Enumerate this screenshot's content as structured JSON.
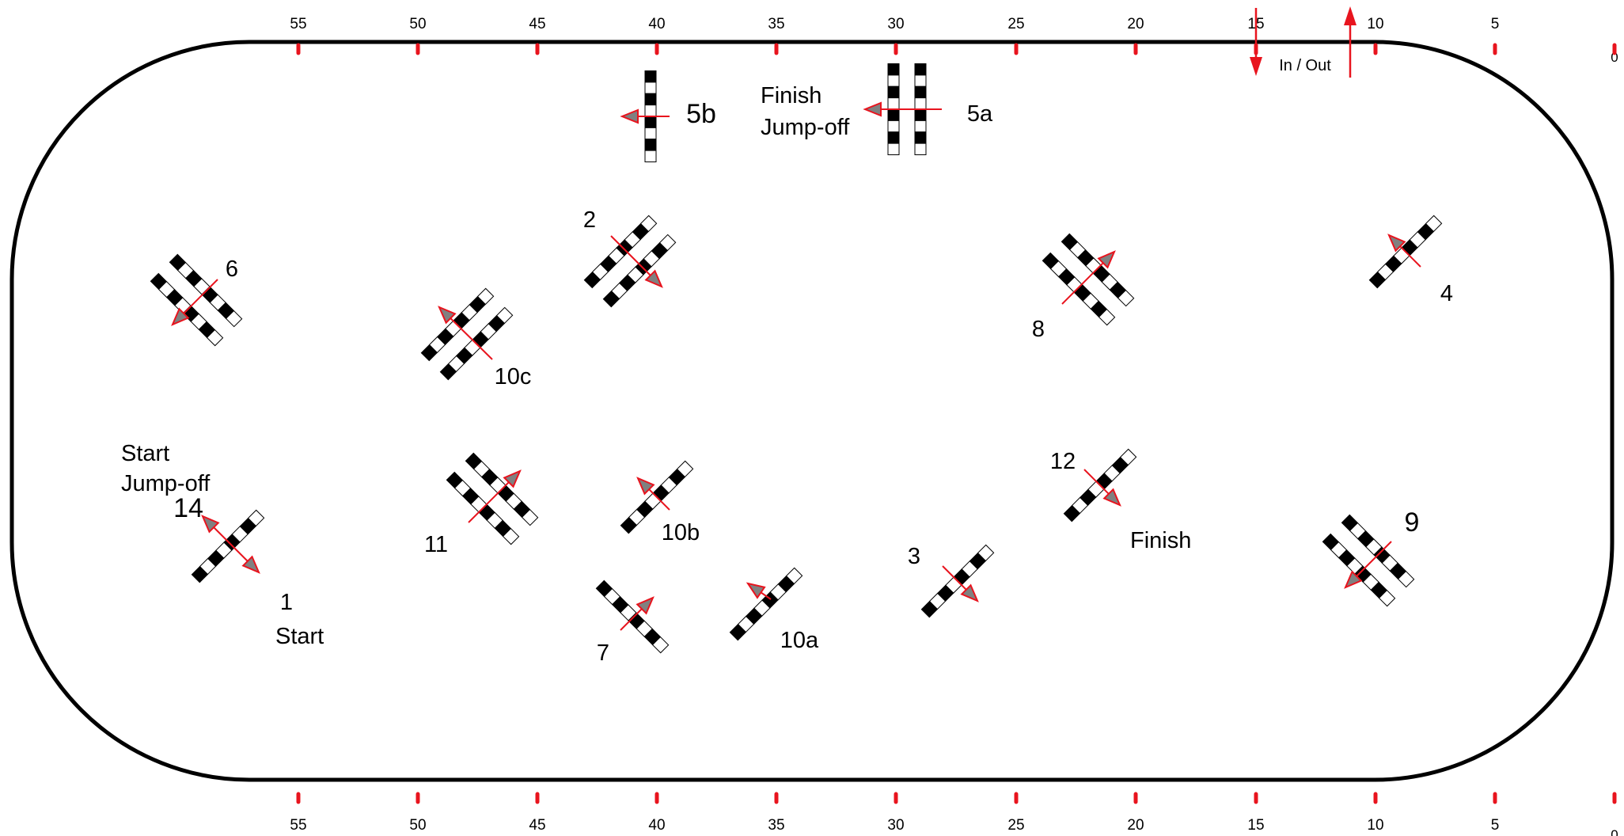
{
  "scale": {
    "top_marks": [
      "55",
      "50",
      "45",
      "40",
      "35",
      "30",
      "25",
      "20",
      "15",
      "10",
      "5",
      "0"
    ],
    "bottom_marks": [
      "55",
      "50",
      "45",
      "40",
      "35",
      "30",
      "25",
      "20",
      "15",
      "10",
      "5",
      "0"
    ]
  },
  "gate": {
    "label": "In / Out"
  },
  "fences": {
    "f1": "1",
    "f2": "2",
    "f3": "3",
    "f4": "4",
    "f5a": "5a",
    "f5b": "5b",
    "f6": "6",
    "f7": "7",
    "f8": "8",
    "f9": "9",
    "f10a": "10a",
    "f10b": "10b",
    "f10c": "10c",
    "f11": "11",
    "f12": "12",
    "f14": "14"
  },
  "notes": {
    "start": "Start",
    "start_jumpoff_1": "Start",
    "start_jumpoff_2": "Jump-off",
    "finish": "Finish",
    "finish_jumpoff_1": "Finish",
    "finish_jumpoff_2": "Jump-off"
  },
  "colors": {
    "arena_line": "#000000",
    "marker": "#e8141e",
    "arrow": "#e8141e",
    "arrow_head_fill": "#808080"
  }
}
